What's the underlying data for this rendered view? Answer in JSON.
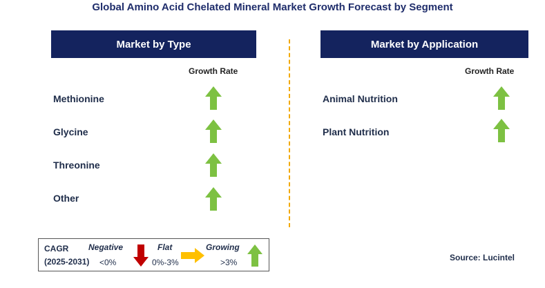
{
  "title": "Global Amino Acid Chelated Mineral Market Growth Forecast by Segment",
  "left_panel": {
    "header": "Market by Type",
    "growth_label": "Growth Rate",
    "items": [
      {
        "label": "Methionine",
        "trend": "growing"
      },
      {
        "label": "Glycine",
        "trend": "growing"
      },
      {
        "label": "Threonine",
        "trend": "growing"
      },
      {
        "label": "Other",
        "trend": "growing"
      }
    ]
  },
  "right_panel": {
    "header": "Market by Application",
    "growth_label": "Growth Rate",
    "items": [
      {
        "label": "Animal Nutrition",
        "trend": "growing"
      },
      {
        "label": "Plant Nutrition",
        "trend": "growing"
      }
    ]
  },
  "legend": {
    "cagr_label": "CAGR",
    "period": "(2025-2031)",
    "negative_label": "Negative",
    "negative_range": "<0%",
    "flat_label": "Flat",
    "flat_range": "0%-3%",
    "growing_label": "Growing",
    "growing_range": ">3%"
  },
  "source": "Source: Lucintel",
  "colors": {
    "header_bg": "#14235e",
    "growing_arrow": "#7dc142",
    "negative_arrow": "#c00000",
    "flat_arrow": "#ffc000",
    "divider": "#f2a900"
  }
}
